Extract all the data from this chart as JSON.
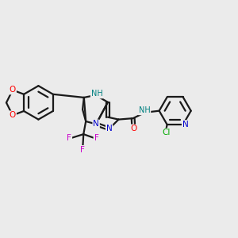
{
  "background_color": "#ebebeb",
  "bond_color": "#1a1a1a",
  "atom_colors": {
    "O": "#ff0000",
    "N": "#0000cc",
    "H": "#008080",
    "F": "#cc00cc",
    "Cl": "#00aa00",
    "C": "#1a1a1a"
  },
  "figsize": [
    3.0,
    3.0
  ],
  "dpi": 100
}
